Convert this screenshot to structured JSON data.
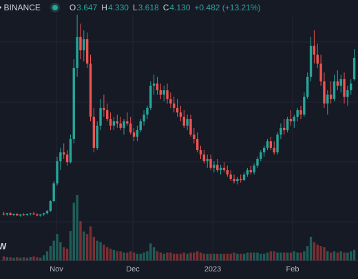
{
  "header": {
    "symbol_exchange": "• BINANCE",
    "ohlc": {
      "o_label": "O",
      "o_value": "3.647",
      "h_label": "H",
      "h_value": "4.330",
      "l_label": "L",
      "l_value": "3.618",
      "c_label": "C",
      "c_value": "4.130",
      "change": "+0.482 (+13.21%)"
    },
    "status_icon": "market-open-dot-icon"
  },
  "volume_badge": "W",
  "colors": {
    "background": "#161a25",
    "grid": "#232735",
    "up": "#26a69a",
    "down": "#ef5350",
    "up_volume": "#1f5e58",
    "down_volume": "#7b2f33"
  },
  "chart_data": {
    "type": "candlestick",
    "x_tick_labels": [
      "Nov",
      "Dec",
      "2023",
      "Feb"
    ],
    "ylim": [
      0,
      5
    ],
    "grid": true,
    "series": [
      {
        "o": 0.62,
        "h": 0.66,
        "l": 0.58,
        "c": 0.6
      },
      {
        "o": 0.6,
        "h": 0.64,
        "l": 0.57,
        "c": 0.63
      },
      {
        "o": 0.63,
        "h": 0.65,
        "l": 0.58,
        "c": 0.59
      },
      {
        "o": 0.59,
        "h": 0.62,
        "l": 0.56,
        "c": 0.61
      },
      {
        "o": 0.61,
        "h": 0.63,
        "l": 0.57,
        "c": 0.58
      },
      {
        "o": 0.58,
        "h": 0.61,
        "l": 0.55,
        "c": 0.6
      },
      {
        "o": 0.6,
        "h": 0.63,
        "l": 0.57,
        "c": 0.59
      },
      {
        "o": 0.59,
        "h": 0.62,
        "l": 0.56,
        "c": 0.61
      },
      {
        "o": 0.61,
        "h": 0.64,
        "l": 0.58,
        "c": 0.62
      },
      {
        "o": 0.62,
        "h": 0.66,
        "l": 0.59,
        "c": 0.6
      },
      {
        "o": 0.6,
        "h": 0.63,
        "l": 0.56,
        "c": 0.58
      },
      {
        "o": 0.58,
        "h": 0.61,
        "l": 0.55,
        "c": 0.6
      },
      {
        "o": 0.6,
        "h": 0.64,
        "l": 0.57,
        "c": 0.63
      },
      {
        "o": 0.63,
        "h": 0.7,
        "l": 0.6,
        "c": 0.68
      },
      {
        "o": 0.68,
        "h": 0.92,
        "l": 0.66,
        "c": 0.9
      },
      {
        "o": 0.9,
        "h": 1.35,
        "l": 0.88,
        "c": 1.3
      },
      {
        "o": 1.3,
        "h": 1.9,
        "l": 1.25,
        "c": 1.8
      },
      {
        "o": 1.8,
        "h": 2.1,
        "l": 1.6,
        "c": 2.0
      },
      {
        "o": 2.0,
        "h": 2.2,
        "l": 1.85,
        "c": 1.95
      },
      {
        "o": 1.95,
        "h": 2.05,
        "l": 1.7,
        "c": 1.78
      },
      {
        "o": 1.78,
        "h": 2.4,
        "l": 1.75,
        "c": 2.3
      },
      {
        "o": 2.3,
        "h": 4.1,
        "l": 2.2,
        "c": 3.9
      },
      {
        "o": 3.9,
        "h": 5.1,
        "l": 3.7,
        "c": 4.6
      },
      {
        "o": 4.6,
        "h": 4.9,
        "l": 4.1,
        "c": 4.3
      },
      {
        "o": 4.3,
        "h": 4.75,
        "l": 4.05,
        "c": 4.55
      },
      {
        "o": 4.55,
        "h": 4.7,
        "l": 3.9,
        "c": 4.0
      },
      {
        "o": 4.0,
        "h": 4.2,
        "l": 2.7,
        "c": 2.8
      },
      {
        "o": 2.8,
        "h": 3.0,
        "l": 2.0,
        "c": 2.1
      },
      {
        "o": 2.1,
        "h": 2.7,
        "l": 2.05,
        "c": 2.6
      },
      {
        "o": 2.6,
        "h": 3.2,
        "l": 2.5,
        "c": 3.0
      },
      {
        "o": 3.0,
        "h": 3.3,
        "l": 2.8,
        "c": 2.95
      },
      {
        "o": 2.95,
        "h": 3.1,
        "l": 2.7,
        "c": 2.75
      },
      {
        "o": 2.75,
        "h": 2.9,
        "l": 2.5,
        "c": 2.6
      },
      {
        "o": 2.6,
        "h": 2.8,
        "l": 2.5,
        "c": 2.7
      },
      {
        "o": 2.7,
        "h": 2.85,
        "l": 2.55,
        "c": 2.65
      },
      {
        "o": 2.65,
        "h": 2.8,
        "l": 2.5,
        "c": 2.55
      },
      {
        "o": 2.55,
        "h": 2.75,
        "l": 2.4,
        "c": 2.7
      },
      {
        "o": 2.7,
        "h": 2.9,
        "l": 2.6,
        "c": 2.65
      },
      {
        "o": 2.65,
        "h": 2.8,
        "l": 2.4,
        "c": 2.45
      },
      {
        "o": 2.45,
        "h": 2.55,
        "l": 2.25,
        "c": 2.35
      },
      {
        "o": 2.35,
        "h": 2.6,
        "l": 2.25,
        "c": 2.5
      },
      {
        "o": 2.5,
        "h": 2.75,
        "l": 2.45,
        "c": 2.7
      },
      {
        "o": 2.7,
        "h": 2.95,
        "l": 2.6,
        "c": 2.85
      },
      {
        "o": 2.85,
        "h": 3.05,
        "l": 2.75,
        "c": 3.0
      },
      {
        "o": 3.0,
        "h": 3.6,
        "l": 2.95,
        "c": 3.5
      },
      {
        "o": 3.5,
        "h": 3.75,
        "l": 3.3,
        "c": 3.55
      },
      {
        "o": 3.55,
        "h": 3.7,
        "l": 3.3,
        "c": 3.4
      },
      {
        "o": 3.4,
        "h": 3.55,
        "l": 3.2,
        "c": 3.3
      },
      {
        "o": 3.3,
        "h": 3.5,
        "l": 3.15,
        "c": 3.4
      },
      {
        "o": 3.4,
        "h": 3.55,
        "l": 3.1,
        "c": 3.2
      },
      {
        "o": 3.2,
        "h": 3.35,
        "l": 3.0,
        "c": 3.1
      },
      {
        "o": 3.1,
        "h": 3.25,
        "l": 2.9,
        "c": 3.0
      },
      {
        "o": 3.0,
        "h": 3.2,
        "l": 2.8,
        "c": 2.9
      },
      {
        "o": 2.9,
        "h": 3.05,
        "l": 2.7,
        "c": 2.8
      },
      {
        "o": 2.8,
        "h": 2.95,
        "l": 2.55,
        "c": 2.6
      },
      {
        "o": 2.6,
        "h": 2.85,
        "l": 2.5,
        "c": 2.75
      },
      {
        "o": 2.75,
        "h": 2.85,
        "l": 2.35,
        "c": 2.4
      },
      {
        "o": 2.4,
        "h": 2.55,
        "l": 2.2,
        "c": 2.3
      },
      {
        "o": 2.3,
        "h": 2.45,
        "l": 2.0,
        "c": 2.05
      },
      {
        "o": 2.05,
        "h": 2.15,
        "l": 1.85,
        "c": 1.95
      },
      {
        "o": 1.95,
        "h": 2.05,
        "l": 1.75,
        "c": 1.8
      },
      {
        "o": 1.8,
        "h": 1.95,
        "l": 1.65,
        "c": 1.85
      },
      {
        "o": 1.85,
        "h": 1.95,
        "l": 1.6,
        "c": 1.65
      },
      {
        "o": 1.65,
        "h": 1.8,
        "l": 1.55,
        "c": 1.72
      },
      {
        "o": 1.72,
        "h": 1.85,
        "l": 1.55,
        "c": 1.6
      },
      {
        "o": 1.6,
        "h": 1.72,
        "l": 1.5,
        "c": 1.65
      },
      {
        "o": 1.65,
        "h": 1.78,
        "l": 1.55,
        "c": 1.6
      },
      {
        "o": 1.6,
        "h": 1.7,
        "l": 1.45,
        "c": 1.5
      },
      {
        "o": 1.5,
        "h": 1.6,
        "l": 1.35,
        "c": 1.4
      },
      {
        "o": 1.4,
        "h": 1.5,
        "l": 1.3,
        "c": 1.35
      },
      {
        "o": 1.35,
        "h": 1.45,
        "l": 1.28,
        "c": 1.4
      },
      {
        "o": 1.4,
        "h": 1.5,
        "l": 1.32,
        "c": 1.38
      },
      {
        "o": 1.38,
        "h": 1.55,
        "l": 1.35,
        "c": 1.5
      },
      {
        "o": 1.5,
        "h": 1.65,
        "l": 1.45,
        "c": 1.6
      },
      {
        "o": 1.6,
        "h": 1.7,
        "l": 1.5,
        "c": 1.55
      },
      {
        "o": 1.55,
        "h": 1.75,
        "l": 1.5,
        "c": 1.7
      },
      {
        "o": 1.7,
        "h": 1.9,
        "l": 1.65,
        "c": 1.85
      },
      {
        "o": 1.85,
        "h": 2.05,
        "l": 1.8,
        "c": 2.0
      },
      {
        "o": 2.0,
        "h": 2.15,
        "l": 1.9,
        "c": 2.1
      },
      {
        "o": 2.1,
        "h": 2.3,
        "l": 2.05,
        "c": 2.25
      },
      {
        "o": 2.25,
        "h": 2.35,
        "l": 2.05,
        "c": 2.1
      },
      {
        "o": 2.1,
        "h": 2.25,
        "l": 1.95,
        "c": 2.0
      },
      {
        "o": 2.0,
        "h": 2.45,
        "l": 1.95,
        "c": 2.4
      },
      {
        "o": 2.4,
        "h": 2.65,
        "l": 2.3,
        "c": 2.55
      },
      {
        "o": 2.55,
        "h": 2.75,
        "l": 2.4,
        "c": 2.5
      },
      {
        "o": 2.5,
        "h": 2.8,
        "l": 2.45,
        "c": 2.75
      },
      {
        "o": 2.75,
        "h": 2.95,
        "l": 2.6,
        "c": 2.7
      },
      {
        "o": 2.7,
        "h": 2.85,
        "l": 2.55,
        "c": 2.8
      },
      {
        "o": 2.8,
        "h": 3.0,
        "l": 2.7,
        "c": 2.95
      },
      {
        "o": 2.95,
        "h": 3.05,
        "l": 2.75,
        "c": 2.85
      },
      {
        "o": 2.85,
        "h": 3.35,
        "l": 2.8,
        "c": 3.25
      },
      {
        "o": 3.25,
        "h": 3.8,
        "l": 3.2,
        "c": 3.7
      },
      {
        "o": 3.7,
        "h": 4.6,
        "l": 3.6,
        "c": 4.4
      },
      {
        "o": 4.4,
        "h": 4.75,
        "l": 4.0,
        "c": 4.2
      },
      {
        "o": 4.2,
        "h": 4.45,
        "l": 3.9,
        "c": 4.0
      },
      {
        "o": 4.0,
        "h": 4.2,
        "l": 3.5,
        "c": 3.6
      },
      {
        "o": 3.6,
        "h": 3.8,
        "l": 3.0,
        "c": 3.1
      },
      {
        "o": 3.1,
        "h": 3.4,
        "l": 2.85,
        "c": 3.3
      },
      {
        "o": 3.3,
        "h": 3.6,
        "l": 3.1,
        "c": 3.2
      },
      {
        "o": 3.2,
        "h": 3.75,
        "l": 3.15,
        "c": 3.6
      },
      {
        "o": 3.6,
        "h": 3.85,
        "l": 3.4,
        "c": 3.5
      },
      {
        "o": 3.5,
        "h": 3.75,
        "l": 3.35,
        "c": 3.65
      },
      {
        "o": 3.65,
        "h": 3.8,
        "l": 3.1,
        "c": 3.25
      },
      {
        "o": 3.25,
        "h": 3.5,
        "l": 3.05,
        "c": 3.4
      },
      {
        "o": 3.4,
        "h": 3.647,
        "l": 3.3,
        "c": 3.55
      },
      {
        "o": 3.647,
        "h": 4.33,
        "l": 3.618,
        "c": 4.13
      }
    ],
    "volume": [
      6,
      5,
      5,
      4,
      5,
      4,
      5,
      4,
      5,
      6,
      5,
      4,
      8,
      14,
      22,
      30,
      40,
      28,
      20,
      18,
      45,
      88,
      100,
      60,
      44,
      40,
      52,
      36,
      30,
      28,
      24,
      20,
      18,
      16,
      14,
      14,
      12,
      12,
      14,
      12,
      10,
      10,
      12,
      14,
      26,
      20,
      14,
      12,
      10,
      12,
      12,
      10,
      10,
      10,
      12,
      10,
      12,
      12,
      14,
      12,
      10,
      10,
      10,
      10,
      10,
      10,
      10,
      10,
      10,
      12,
      10,
      10,
      10,
      12,
      12,
      12,
      12,
      10,
      10,
      12,
      14,
      14,
      12,
      12,
      12,
      12,
      12,
      14,
      12,
      12,
      14,
      22,
      36,
      28,
      24,
      22,
      20,
      14,
      12,
      14,
      12,
      14,
      12,
      12,
      14,
      16
    ]
  }
}
